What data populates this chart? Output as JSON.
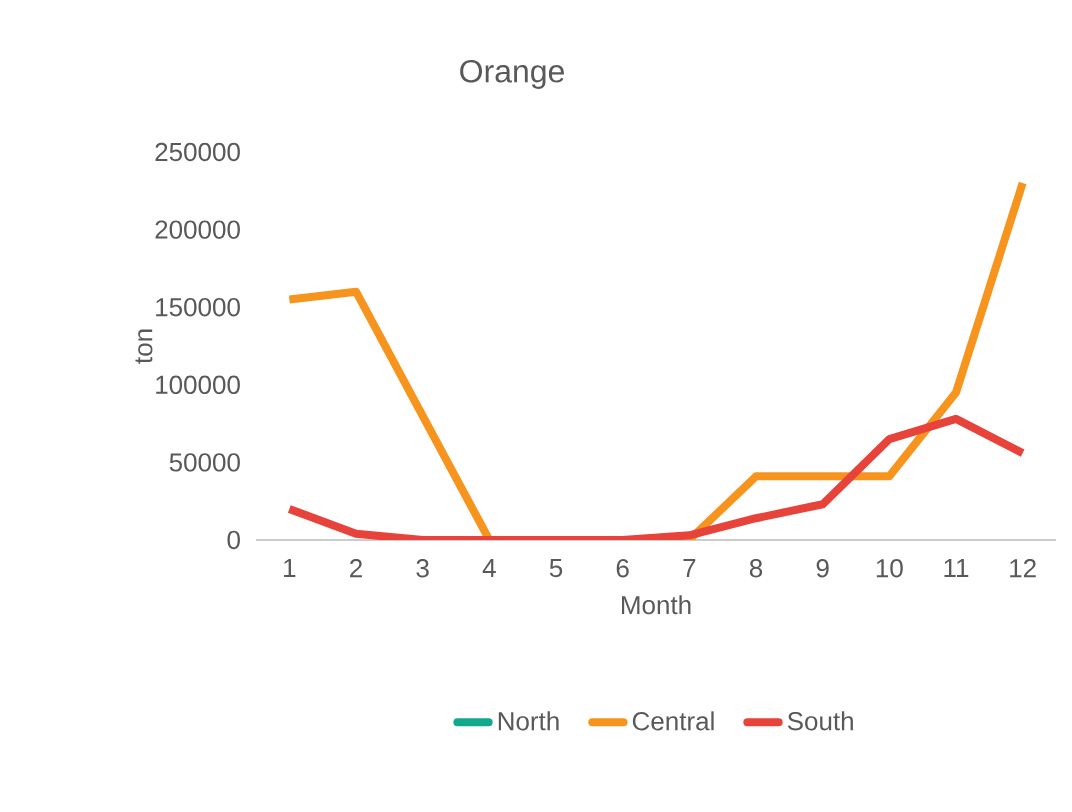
{
  "chart_data": {
    "type": "line",
    "title": "Orange",
    "xlabel": "Month",
    "ylabel": "ton",
    "categories": [
      "1",
      "2",
      "3",
      "4",
      "5",
      "6",
      "7",
      "8",
      "9",
      "10",
      "11",
      "12"
    ],
    "series": [
      {
        "name": "North",
        "color": "#12a88e",
        "values": [
          null,
          null,
          null,
          null,
          null,
          null,
          null,
          null,
          null,
          null,
          null,
          null
        ]
      },
      {
        "name": "Central",
        "color": "#f7941d",
        "values": [
          155000,
          160000,
          80000,
          0,
          0,
          0,
          0,
          41000,
          41000,
          41000,
          95000,
          230000
        ]
      },
      {
        "name": "South",
        "color": "#e8433a",
        "values": [
          20000,
          4000,
          0,
          0,
          0,
          0,
          3000,
          14000,
          23000,
          65000,
          78000,
          56000
        ]
      }
    ],
    "ylim": [
      0,
      250000
    ],
    "yticks": [
      0,
      50000,
      100000,
      150000,
      200000,
      250000
    ],
    "grid": false,
    "legend": "bottom",
    "marker": "none",
    "line_style": "solid"
  }
}
